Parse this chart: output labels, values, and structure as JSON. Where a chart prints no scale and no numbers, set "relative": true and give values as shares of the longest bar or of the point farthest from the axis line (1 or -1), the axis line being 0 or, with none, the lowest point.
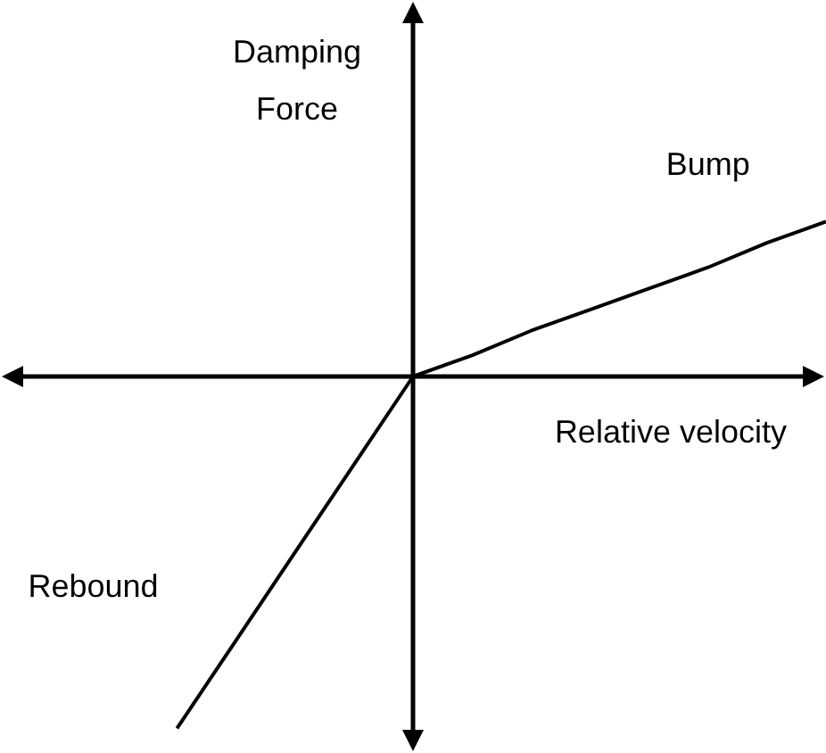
{
  "chart_data": {
    "type": "line",
    "relative": true,
    "xlabel": "Relative velocity",
    "ylabel": "Damping Force",
    "categories": [
      null,
      null,
      null,
      null,
      null,
      null,
      null,
      null,
      null,
      null,
      null,
      null,
      null,
      null,
      null
    ],
    "series": [
      {
        "name": "Rebound",
        "color": "#000000",
        "values": [
          null,
          null,
          null,
          -1,
          -0.75,
          -0.5,
          -0.25,
          0,
          null,
          null,
          null,
          null,
          null,
          null,
          null
        ]
      },
      {
        "name": "Bump",
        "color": "#000000",
        "values": [
          null,
          null,
          null,
          null,
          null,
          null,
          null,
          0,
          0.06,
          0.13,
          0.19,
          0.25,
          0.31,
          0.38,
          0.44
        ]
      }
    ]
  }
}
